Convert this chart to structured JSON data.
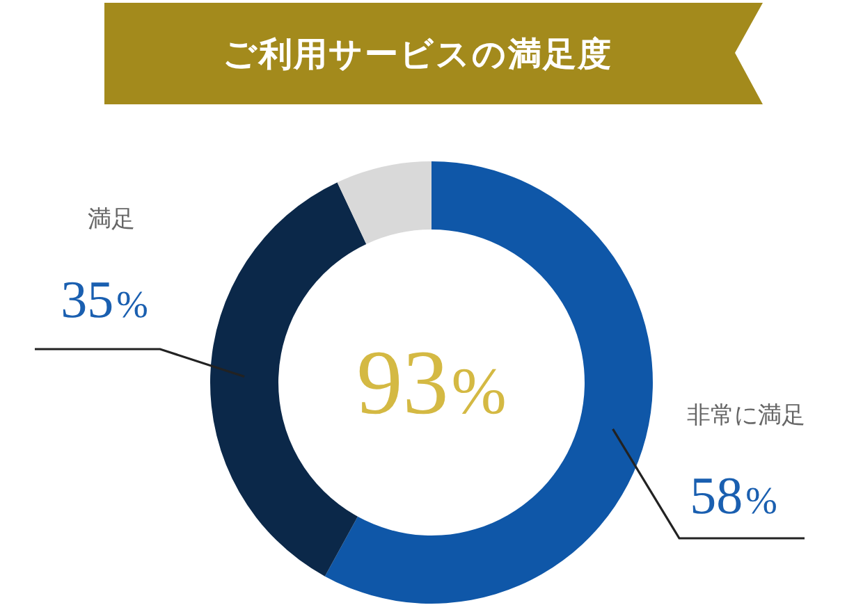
{
  "chart_data": {
    "type": "donut",
    "title": "ご利用サービスの満足度",
    "categories": [
      "非常に満足",
      "満足",
      null
    ],
    "values": [
      58,
      35,
      7
    ],
    "colors": [
      "#0f57a8",
      "#0b2849",
      "#d9d9d9"
    ],
    "value_labels": [
      "58%",
      "35%",
      null
    ],
    "annotations": [
      "93%"
    ]
  }
}
